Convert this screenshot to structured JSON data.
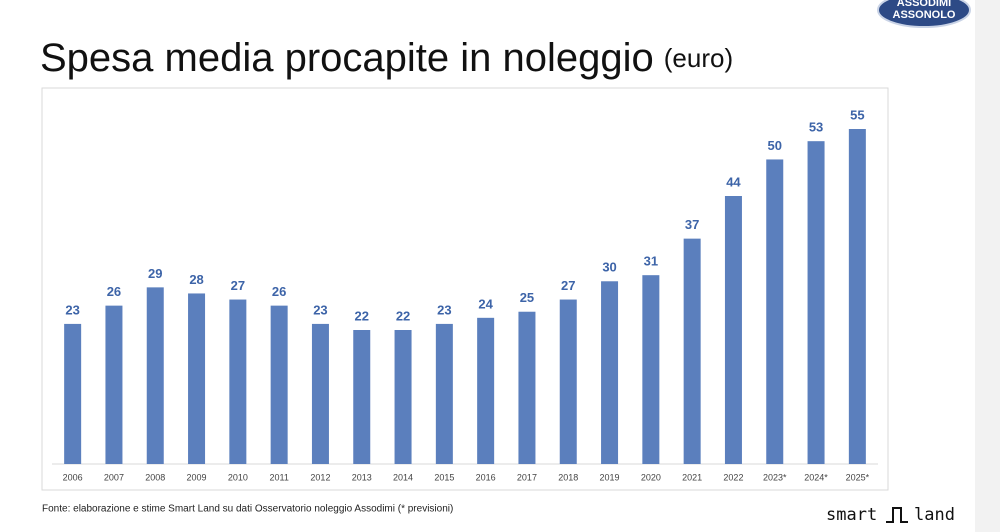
{
  "header": {
    "title": "Spesa media procapite in noleggio",
    "unit": "(euro)"
  },
  "logo": {
    "line1": "ASSODIMI",
    "line2": "ASSONOLO"
  },
  "chart_data": {
    "type": "bar",
    "color": "#5b7fbd",
    "label_color": "#3d64a8",
    "categories": [
      "2006",
      "2007",
      "2008",
      "2009",
      "2010",
      "2011",
      "2012",
      "2013",
      "2014",
      "2015",
      "2016",
      "2017",
      "2018",
      "2019",
      "2020",
      "2021",
      "2022",
      "2023*",
      "2024*",
      "2025*"
    ],
    "values": [
      23,
      26,
      29,
      28,
      27,
      26,
      23,
      22,
      22,
      23,
      24,
      25,
      27,
      30,
      31,
      37,
      44,
      50,
      53,
      55
    ]
  },
  "footer": {
    "source": "Fonte: elaborazione e stime Smart Land su dati Osservatorio noleggio Assodimi (* previsioni)",
    "brand_left": "smart",
    "brand_right": "land"
  }
}
